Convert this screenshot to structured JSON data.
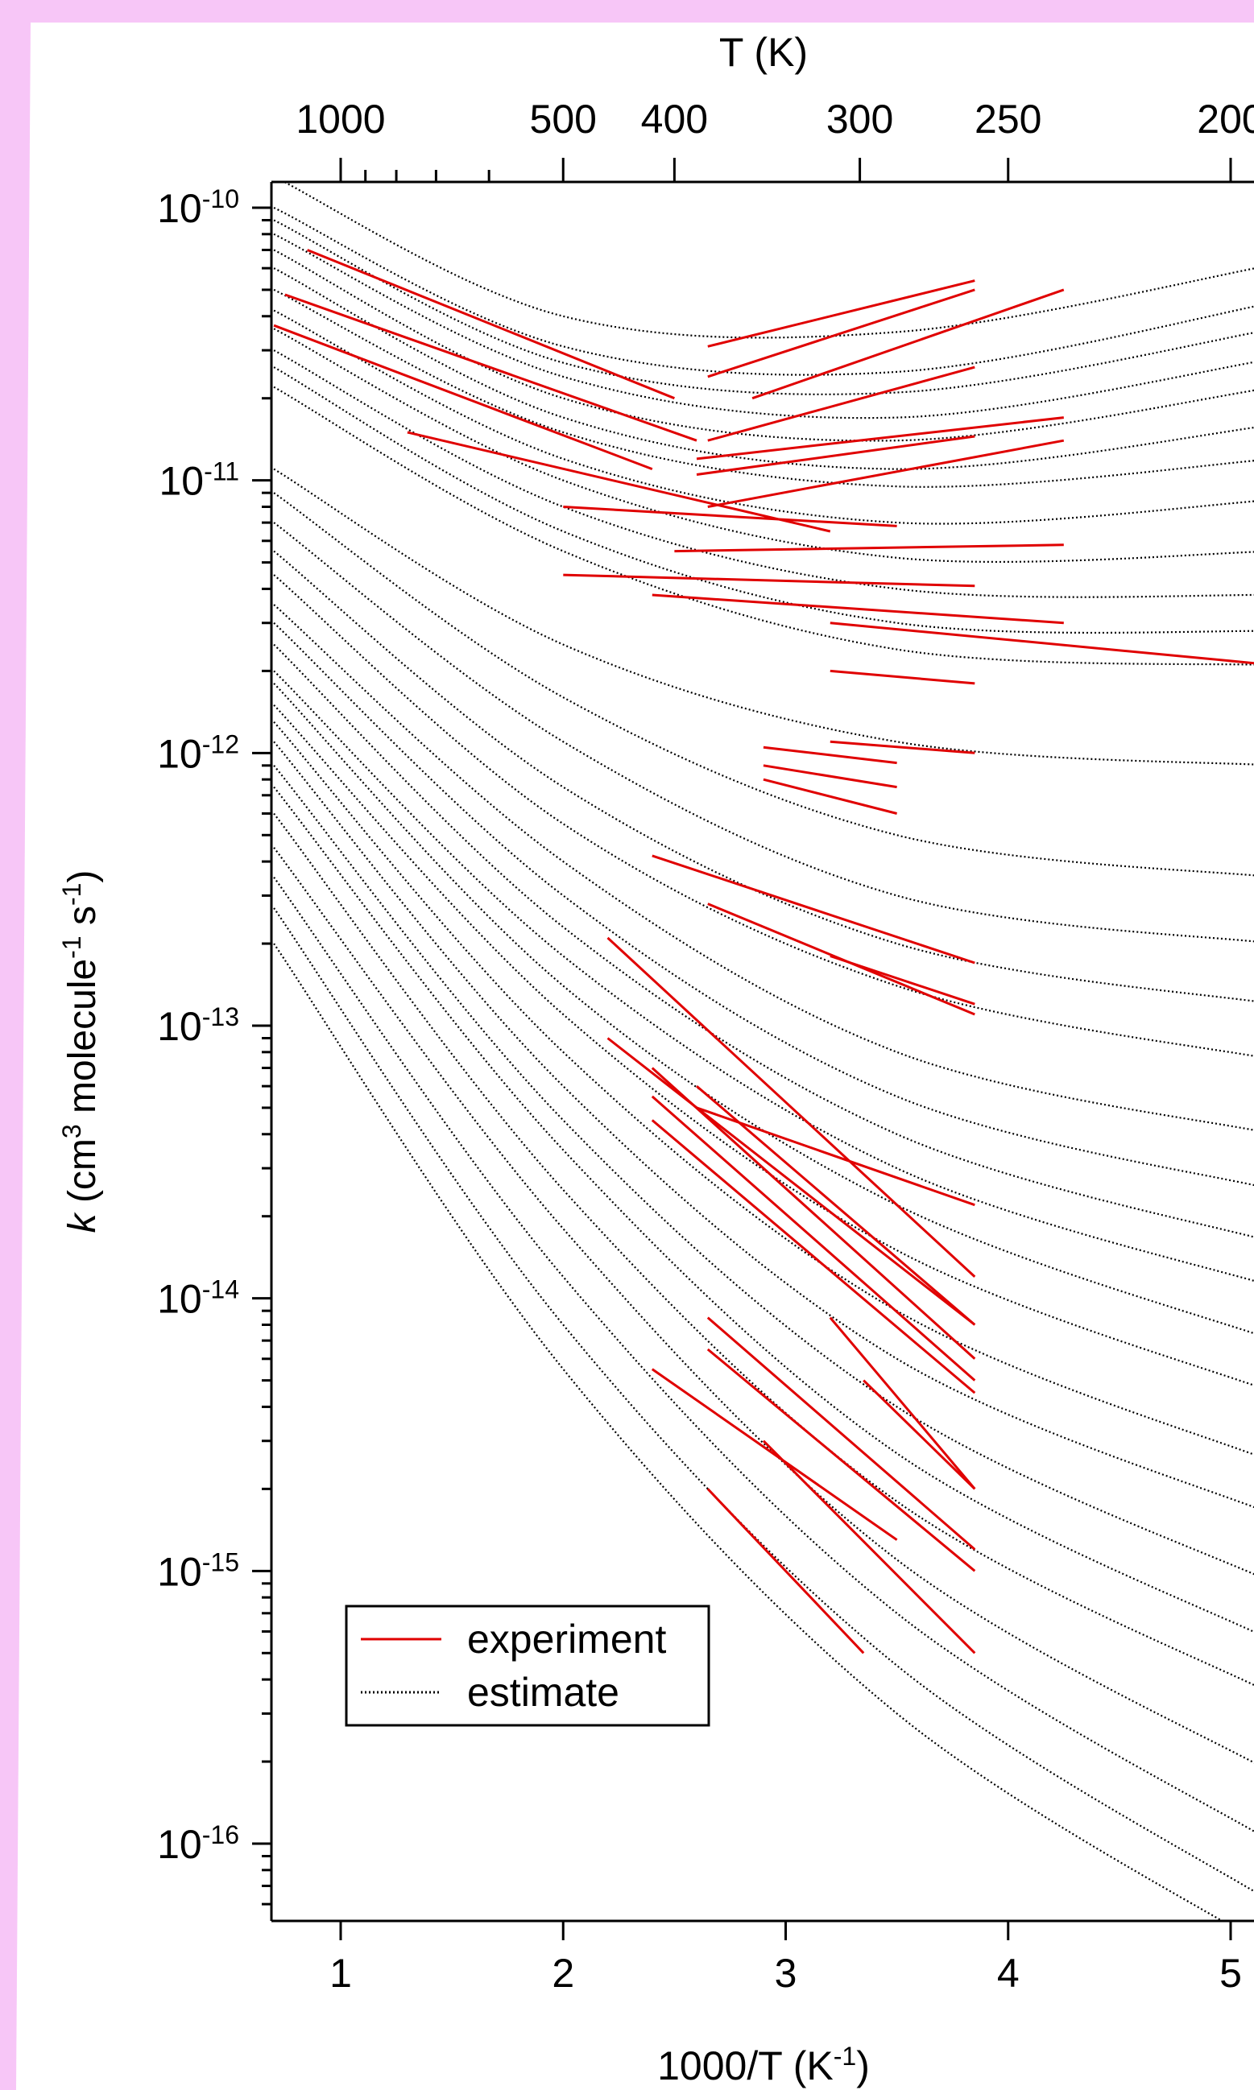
{
  "chart_data": {
    "type": "line",
    "title": "",
    "xlabel": "1000/T (K",
    "xlabel_sup": "-1",
    "xlabel_end": ")",
    "ylabel": {
      "italic_k": "k",
      "part1": " (cm",
      "sup1": "3",
      "part2": " molecule",
      "sup2": "-1",
      "part3": " s",
      "sup3": "-1",
      "part4": ")"
    },
    "top_axis_label": "T (K)",
    "x_scale": "linear",
    "y_scale": "log",
    "xlim": [
      0.7,
      5.2
    ],
    "ylim": [
      5e-17,
      1.5e-10
    ],
    "x_ticks": [
      1,
      2,
      3,
      4,
      5
    ],
    "x_tick_labels": [
      "1",
      "2",
      "3",
      "4",
      "5"
    ],
    "y_ticks": [
      {
        "base": "10",
        "exp": "-10"
      },
      {
        "base": "10",
        "exp": "-11"
      },
      {
        "base": "10",
        "exp": "-12"
      },
      {
        "base": "10",
        "exp": "-13"
      },
      {
        "base": "10",
        "exp": "-14"
      },
      {
        "base": "10",
        "exp": "-15"
      },
      {
        "base": "10",
        "exp": "-16"
      }
    ],
    "top_ticks_T": [
      1000,
      500,
      400,
      300,
      250,
      200
    ],
    "top_tick_labels": [
      "1000",
      "500",
      "400",
      "300",
      "250",
      "200"
    ],
    "top_minor_T": [
      900,
      800,
      700,
      600
    ],
    "legend": {
      "position": "bottom-left",
      "entries": [
        {
          "label": "experiment",
          "color": "#e00000",
          "style": "solid"
        },
        {
          "label": "estimate",
          "color": "#000000",
          "style": "dotted"
        }
      ]
    },
    "colors": {
      "experiment": "#e00000",
      "estimate": "#000000"
    },
    "estimate_curves": [
      {
        "x": [
          0.7,
          2.0,
          3.5,
          5.2
        ],
        "y": [
          1.3e-10,
          4e-11,
          3.5e-11,
          6.2e-11
        ]
      },
      {
        "x": [
          0.7,
          2.0,
          3.5,
          5.2
        ],
        "y": [
          1e-10,
          3.1e-11,
          2.5e-11,
          4.5e-11
        ]
      },
      {
        "x": [
          0.7,
          2.0,
          3.5,
          5.2
        ],
        "y": [
          9e-11,
          2.7e-11,
          2.1e-11,
          3.6e-11
        ]
      },
      {
        "x": [
          0.7,
          2.0,
          3.5,
          5.2
        ],
        "y": [
          8e-11,
          2.4e-11,
          1.7e-11,
          2.8e-11
        ]
      },
      {
        "x": [
          0.7,
          2.0,
          3.5,
          5.2
        ],
        "y": [
          7e-11,
          2e-11,
          1.4e-11,
          2.2e-11
        ]
      },
      {
        "x": [
          0.7,
          2.0,
          3.5,
          5.2
        ],
        "y": [
          6e-11,
          1.7e-11,
          1.1e-11,
          1.6e-11
        ]
      },
      {
        "x": [
          0.7,
          2.0,
          3.5,
          5.2
        ],
        "y": [
          5e-11,
          1.5e-11,
          9.5e-12,
          1.2e-11
        ]
      },
      {
        "x": [
          0.7,
          2.0,
          3.5,
          5.2
        ],
        "y": [
          4.2e-11,
          1.2e-11,
          7e-12,
          8.5e-12
        ]
      },
      {
        "x": [
          0.7,
          2.0,
          3.5,
          5.2
        ],
        "y": [
          3.6e-11,
          1e-11,
          5.2e-12,
          5.5e-12
        ]
      },
      {
        "x": [
          0.7,
          2.0,
          3.5,
          5.2
        ],
        "y": [
          3e-11,
          8e-12,
          4e-12,
          3.8e-12
        ]
      },
      {
        "x": [
          0.7,
          2.0,
          3.5,
          5.2
        ],
        "y": [
          2.6e-11,
          6.5e-12,
          3e-12,
          2.8e-12
        ]
      },
      {
        "x": [
          0.7,
          2.0,
          3.5,
          5.2
        ],
        "y": [
          2.2e-11,
          5.5e-12,
          2.4e-12,
          2.1e-12
        ]
      },
      {
        "x": [
          0.7,
          2.0,
          3.5,
          5.2
        ],
        "y": [
          1.1e-11,
          2.5e-12,
          1.1e-12,
          9e-13
        ]
      },
      {
        "x": [
          0.7,
          2.0,
          3.5,
          5.2
        ],
        "y": [
          9e-12,
          1.6e-12,
          5e-13,
          3.5e-13
        ]
      },
      {
        "x": [
          0.7,
          2.0,
          3.5,
          5.2
        ],
        "y": [
          7e-12,
          1.1e-12,
          3e-13,
          2e-13
        ]
      },
      {
        "x": [
          0.7,
          2.0,
          3.5,
          5.2
        ],
        "y": [
          5.5e-12,
          7.5e-13,
          2e-13,
          1.2e-13
        ]
      },
      {
        "x": [
          0.7,
          2.0,
          3.5,
          5.2
        ],
        "y": [
          4.5e-12,
          5.5e-13,
          1.4e-13,
          7.5e-14
        ]
      },
      {
        "x": [
          0.7,
          2.0,
          3.5,
          5.2
        ],
        "y": [
          3.5e-12,
          4e-13,
          8e-14,
          4e-14
        ]
      },
      {
        "x": [
          0.7,
          2.0,
          3.5,
          5.2
        ],
        "y": [
          3e-12,
          3e-13,
          5.5e-14,
          2.5e-14
        ]
      },
      {
        "x": [
          0.7,
          2.0,
          3.5,
          5.2
        ],
        "y": [
          2.5e-12,
          2.3e-13,
          4e-14,
          1.6e-14
        ]
      },
      {
        "x": [
          0.7,
          2.0,
          3.5,
          5.2
        ],
        "y": [
          2e-12,
          1.8e-13,
          3e-14,
          1.1e-14
        ]
      },
      {
        "x": [
          0.7,
          2.0,
          3.5,
          5.2
        ],
        "y": [
          1.8e-12,
          1.4e-13,
          2.2e-14,
          7e-15
        ]
      },
      {
        "x": [
          0.7,
          2.0,
          3.5,
          5.2
        ],
        "y": [
          1.5e-12,
          1.1e-13,
          1.5e-14,
          4.5e-15
        ]
      },
      {
        "x": [
          0.7,
          2.0,
          3.5,
          5.2
        ],
        "y": [
          1.3e-12,
          8e-14,
          9e-15,
          2.5e-15
        ]
      },
      {
        "x": [
          0.7,
          2.0,
          3.5,
          5.2
        ],
        "y": [
          1.1e-12,
          6e-14,
          6e-15,
          1.6e-15
        ]
      },
      {
        "x": [
          0.7,
          2.0,
          3.5,
          5.2
        ],
        "y": [
          9e-13,
          4.5e-14,
          4e-15,
          9e-16
        ]
      },
      {
        "x": [
          0.7,
          2.0,
          3.5,
          5.2
        ],
        "y": [
          7.5e-13,
          3.5e-14,
          2.7e-15,
          5.5e-16
        ]
      },
      {
        "x": [
          0.7,
          2.0,
          3.5,
          5.2
        ],
        "y": [
          6e-13,
          2.5e-14,
          1.8e-15,
          3.5e-16
        ]
      },
      {
        "x": [
          0.7,
          2.0,
          3.5,
          5.2
        ],
        "y": [
          4.5e-13,
          1.8e-14,
          1.1e-15,
          1.8e-16
        ]
      },
      {
        "x": [
          0.7,
          2.0,
          3.5,
          5.2
        ],
        "y": [
          3.5e-13,
          1.2e-14,
          7e-16,
          1e-16
        ]
      },
      {
        "x": [
          0.7,
          2.0,
          3.5,
          5.2
        ],
        "y": [
          2.7e-13,
          8e-15,
          4.5e-16,
          6e-17
        ]
      },
      {
        "x": [
          0.7,
          2.0,
          3.5,
          5.2
        ],
        "y": [
          2e-13,
          5.5e-15,
          3e-16,
          4e-17
        ]
      }
    ],
    "experiment_segments": [
      {
        "x": [
          2.65,
          3.85
        ],
        "y": [
          3.1e-11,
          5.4e-11
        ]
      },
      {
        "x": [
          2.65,
          3.85
        ],
        "y": [
          2.4e-11,
          5e-11
        ]
      },
      {
        "x": [
          2.85,
          4.25
        ],
        "y": [
          2e-11,
          5e-11
        ]
      },
      {
        "x": [
          2.65,
          3.85
        ],
        "y": [
          1.4e-11,
          2.6e-11
        ]
      },
      {
        "x": [
          2.6,
          4.25
        ],
        "y": [
          1.2e-11,
          1.7e-11
        ]
      },
      {
        "x": [
          2.6,
          3.85
        ],
        "y": [
          1.05e-11,
          1.45e-11
        ]
      },
      {
        "x": [
          2.65,
          4.25
        ],
        "y": [
          8e-12,
          1.4e-11
        ]
      },
      {
        "x": [
          0.85,
          2.5
        ],
        "y": [
          7e-11,
          2e-11
        ]
      },
      {
        "x": [
          0.7,
          2.4
        ],
        "y": [
          3.7e-11,
          1.1e-11
        ]
      },
      {
        "x": [
          0.75,
          2.6
        ],
        "y": [
          4.8e-11,
          1.4e-11
        ]
      },
      {
        "x": [
          1.3,
          3.2
        ],
        "y": [
          1.5e-11,
          6.5e-12
        ]
      },
      {
        "x": [
          2.0,
          3.5
        ],
        "y": [
          8e-12,
          6.8e-12
        ]
      },
      {
        "x": [
          2.5,
          4.25
        ],
        "y": [
          5.5e-12,
          5.8e-12
        ]
      },
      {
        "x": [
          2.0,
          3.85
        ],
        "y": [
          4.5e-12,
          4.1e-12
        ]
      },
      {
        "x": [
          2.4,
          4.25
        ],
        "y": [
          3.8e-12,
          3e-12
        ]
      },
      {
        "x": [
          3.2,
          5.2
        ],
        "y": [
          3e-12,
          2.1e-12
        ]
      },
      {
        "x": [
          3.2,
          3.85
        ],
        "y": [
          2e-12,
          1.8e-12
        ]
      },
      {
        "x": [
          3.2,
          3.85
        ],
        "y": [
          1.1e-12,
          1e-12
        ]
      },
      {
        "x": [
          2.9,
          3.5
        ],
        "y": [
          1.05e-12,
          9.2e-13
        ]
      },
      {
        "x": [
          2.9,
          3.5
        ],
        "y": [
          9e-13,
          7.5e-13
        ]
      },
      {
        "x": [
          2.9,
          3.5
        ],
        "y": [
          8e-13,
          6e-13
        ]
      },
      {
        "x": [
          2.4,
          3.85
        ],
        "y": [
          4.2e-13,
          1.7e-13
        ]
      },
      {
        "x": [
          2.65,
          3.85
        ],
        "y": [
          2.8e-13,
          1.1e-13
        ]
      },
      {
        "x": [
          3.2,
          3.85
        ],
        "y": [
          1.8e-13,
          1.2e-13
        ]
      },
      {
        "x": [
          2.2,
          3.85
        ],
        "y": [
          2.1e-13,
          1.2e-14
        ]
      },
      {
        "x": [
          2.2,
          3.85
        ],
        "y": [
          9e-14,
          8e-15
        ]
      },
      {
        "x": [
          2.4,
          3.85
        ],
        "y": [
          7e-14,
          6e-15
        ]
      },
      {
        "x": [
          2.4,
          3.85
        ],
        "y": [
          5.5e-14,
          5e-15
        ]
      },
      {
        "x": [
          2.4,
          3.85
        ],
        "y": [
          4.5e-14,
          4.5e-15
        ]
      },
      {
        "x": [
          2.6,
          3.85
        ],
        "y": [
          6e-14,
          8e-15
        ]
      },
      {
        "x": [
          2.6,
          3.85
        ],
        "y": [
          5e-14,
          2.2e-14
        ]
      },
      {
        "x": [
          2.65,
          3.85
        ],
        "y": [
          8.5e-15,
          1.2e-15
        ]
      },
      {
        "x": [
          2.65,
          3.85
        ],
        "y": [
          6.5e-15,
          1e-15
        ]
      },
      {
        "x": [
          2.4,
          3.5
        ],
        "y": [
          5.5e-15,
          1.3e-15
        ]
      },
      {
        "x": [
          2.65,
          3.35
        ],
        "y": [
          2e-15,
          5e-16
        ]
      },
      {
        "x": [
          3.2,
          3.85
        ],
        "y": [
          8.5e-15,
          2e-15
        ]
      },
      {
        "x": [
          3.35,
          3.85
        ],
        "y": [
          5e-15,
          2e-15
        ]
      },
      {
        "x": [
          2.9,
          3.85
        ],
        "y": [
          3e-15,
          5e-16
        ]
      }
    ]
  }
}
